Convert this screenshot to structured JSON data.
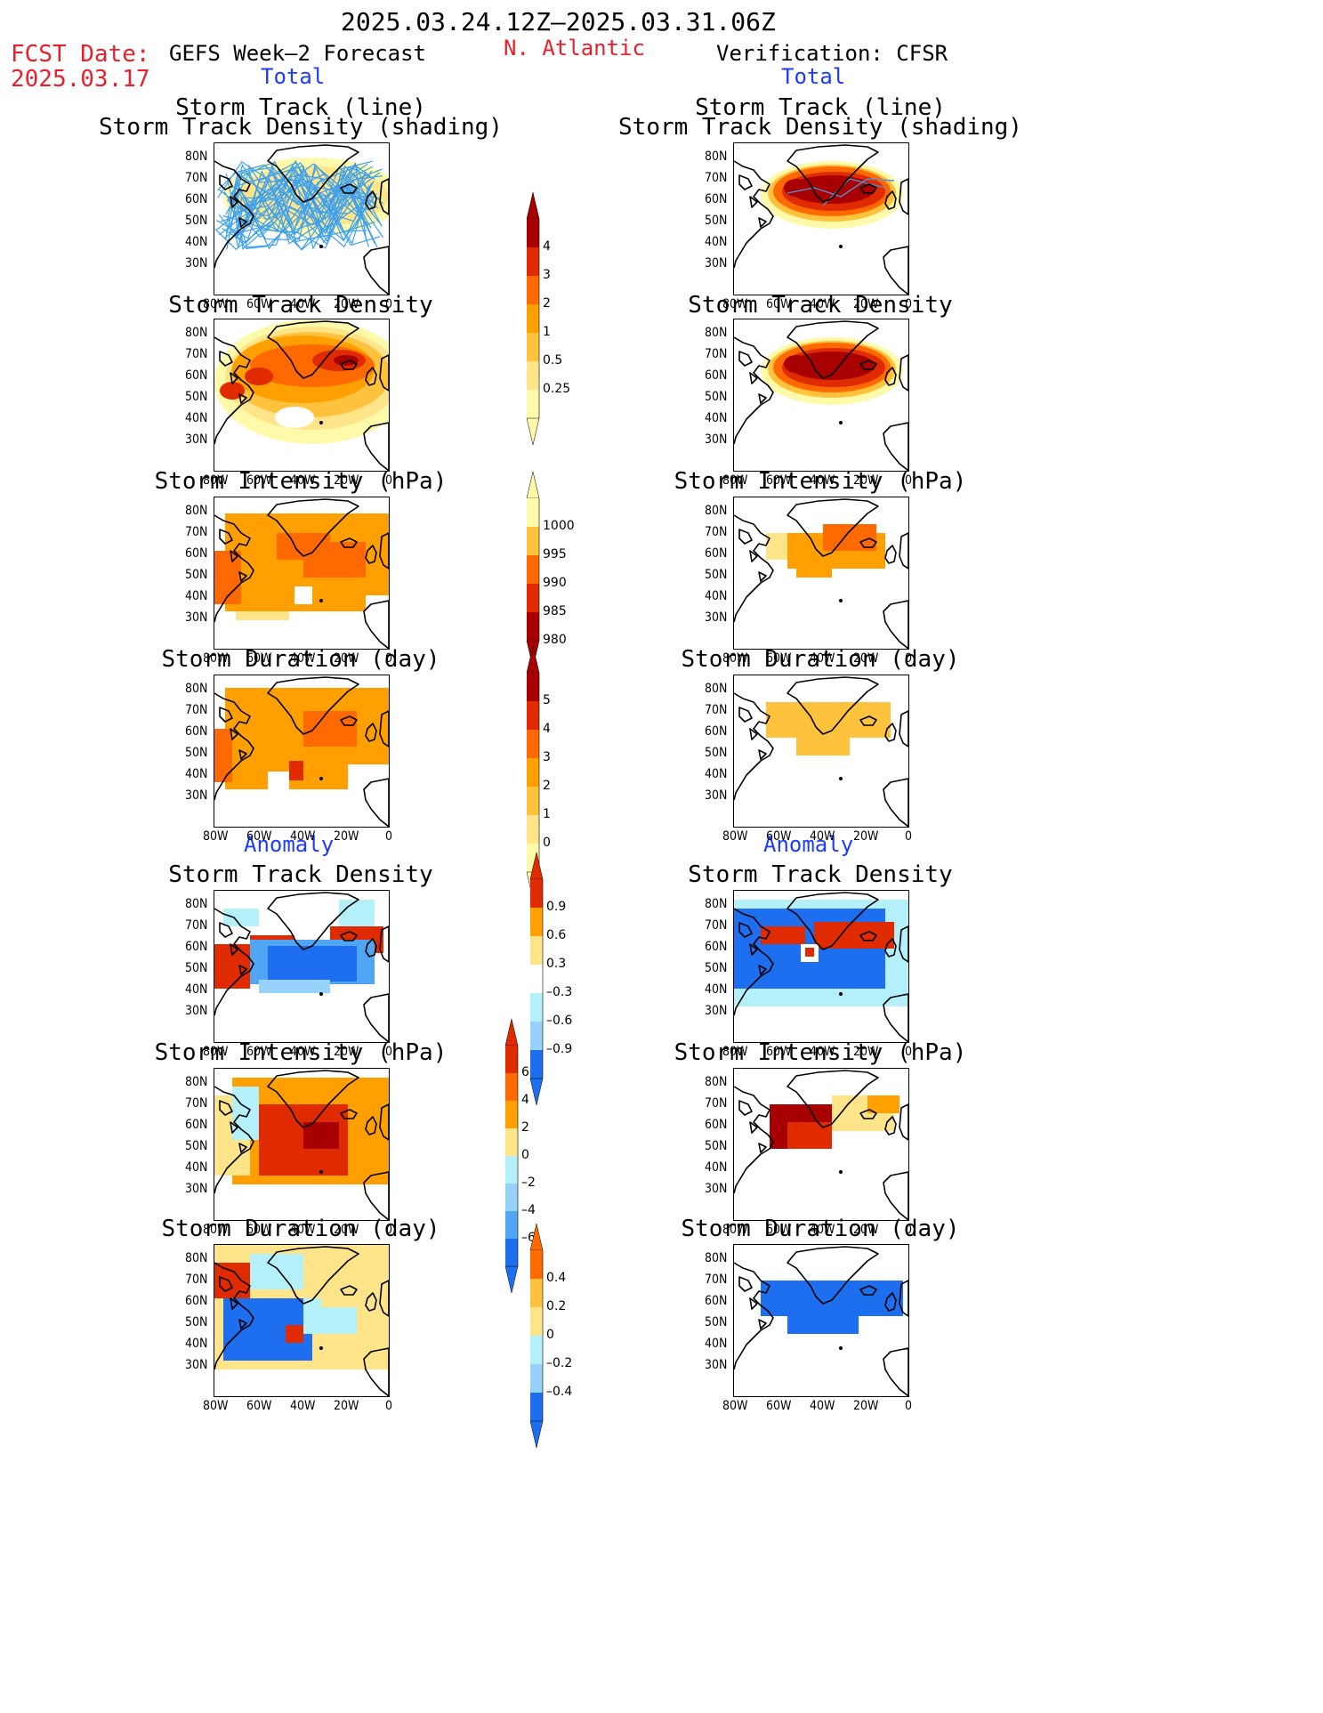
{
  "header": {
    "date_range": "2025.03.24.12Z–2025.03.31.06Z",
    "fcst_label": "FCST Date:",
    "fcst_date": "2025.03.17",
    "model_title": "GEFS Week–2 Forecast",
    "region": "N. Atlantic",
    "verification_title": "Verification: CFSR"
  },
  "sections": {
    "total": "Total",
    "anomaly": "Anomaly"
  },
  "panel_titles": {
    "track_line": "Storm Track (line)",
    "track_shading": "Storm Track Density (shading)",
    "density": "Storm Track Density",
    "intensity": "Storm Intensity (hPa)",
    "duration": "Storm Duration (day)"
  },
  "axes": {
    "lat_ticks": [
      "80N",
      "70N",
      "60N",
      "50N",
      "40N",
      "30N"
    ],
    "lon_ticks": [
      "80W",
      "60W",
      "40W",
      "20W",
      "0"
    ]
  },
  "colorbars": {
    "density": [
      "4",
      "3",
      "2",
      "1",
      "0.5",
      "0.25"
    ],
    "intensity": [
      "1000",
      "995",
      "990",
      "985",
      "980"
    ],
    "duration": [
      "5",
      "4",
      "3",
      "2",
      "1",
      "0"
    ],
    "density_anom": [
      "0.9",
      "0.6",
      "0.3",
      "–0.3",
      "–0.6",
      "–0.9"
    ],
    "intensity_anom": [
      "6",
      "4",
      "2",
      "0",
      "–2",
      "–4",
      "–6"
    ],
    "duration_anom": [
      "0.4",
      "0.2",
      "0",
      "–0.2",
      "–0.4"
    ]
  },
  "colors": {
    "title_red": "#e8202c",
    "title_blue": "#1e3cff",
    "warm": [
      "#fffaaa",
      "#ffe48a",
      "#ffc23c",
      "#ffa000",
      "#ff6a00",
      "#e02a00",
      "#a80000"
    ],
    "cool": [
      "#b4f0fa",
      "#96d2fa",
      "#50a5f5",
      "#1e6ef0",
      "#1450d2"
    ],
    "track_line": "#3ca0f0"
  }
}
